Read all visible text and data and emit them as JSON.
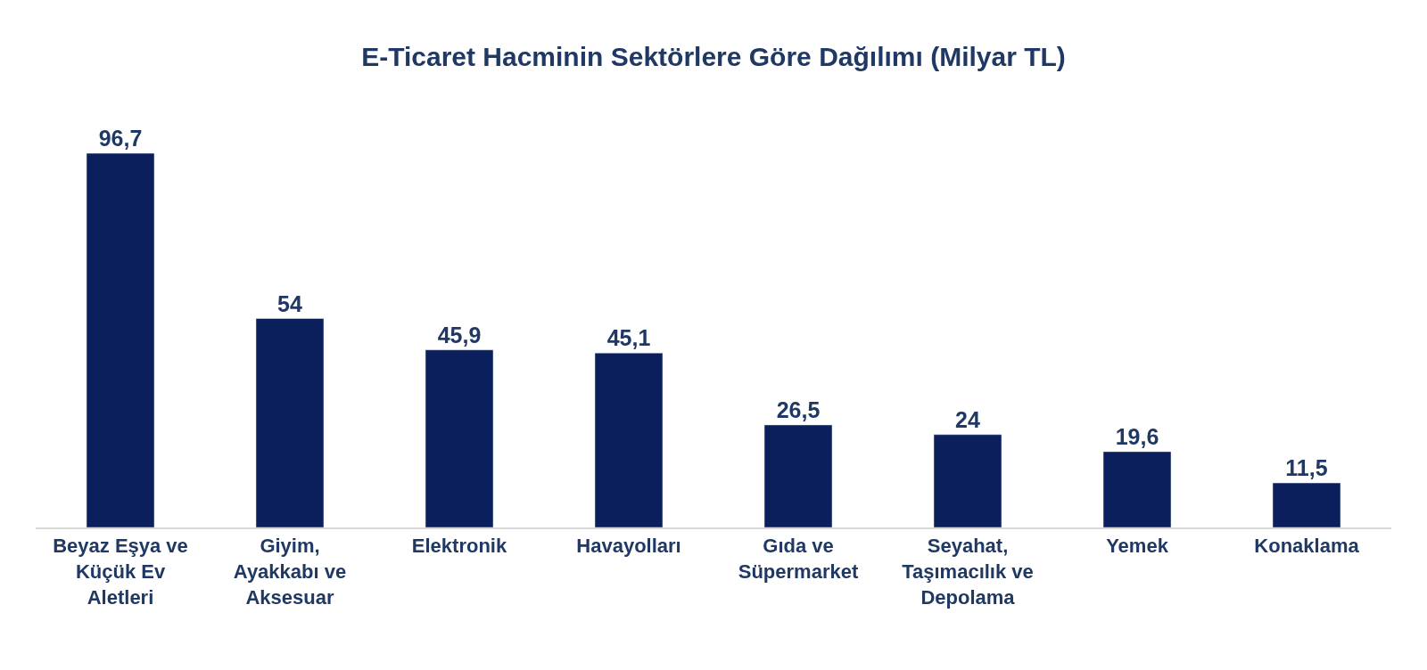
{
  "chart_data": {
    "type": "bar",
    "title": "E-Ticaret Hacminin Sektörlere Göre Dağılımı (Milyar TL)",
    "categories": [
      "Beyaz Eşya ve Küçük Ev Aletleri",
      "Giyim, Ayakkabı ve Aksesuar",
      "Elektronik",
      "Havayolları",
      "Gıda ve Süpermarket",
      "Seyahat, Taşımacılık ve Depolama",
      "Yemek",
      "Konaklama"
    ],
    "values": [
      96.7,
      54,
      45.9,
      45.1,
      26.5,
      24,
      19.6,
      11.5
    ],
    "value_labels": [
      "96,7",
      "54",
      "45,9",
      "45,1",
      "26,5",
      "24",
      "19,6",
      "11,5"
    ],
    "color": "#0b1f5c",
    "tick_labels": "x"
  }
}
